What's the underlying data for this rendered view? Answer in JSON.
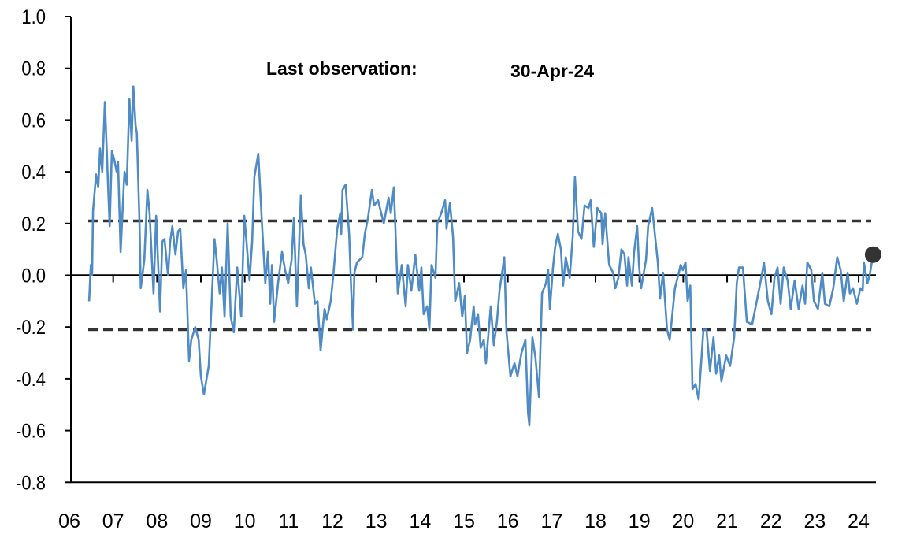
{
  "chart_data": {
    "type": "line",
    "title": "",
    "xlabel": "",
    "ylabel": "",
    "annotation": {
      "label": "Last observation:",
      "value": "30-Apr-24"
    },
    "xlim": [
      2006,
      2024.4
    ],
    "ylim": [
      -0.8,
      1.0
    ],
    "x_ticks": [
      {
        "x": 2006,
        "label": "06"
      },
      {
        "x": 2007,
        "label": "07"
      },
      {
        "x": 2008,
        "label": "08"
      },
      {
        "x": 2009,
        "label": "09"
      },
      {
        "x": 2010,
        "label": "10"
      },
      {
        "x": 2011,
        "label": "11"
      },
      {
        "x": 2012,
        "label": "12"
      },
      {
        "x": 2013,
        "label": "13"
      },
      {
        "x": 2014,
        "label": "14"
      },
      {
        "x": 2015,
        "label": "15"
      },
      {
        "x": 2016,
        "label": "16"
      },
      {
        "x": 2017,
        "label": "17"
      },
      {
        "x": 2018,
        "label": "18"
      },
      {
        "x": 2019,
        "label": "19"
      },
      {
        "x": 2020,
        "label": "20"
      },
      {
        "x": 2021,
        "label": "21"
      },
      {
        "x": 2022,
        "label": "22"
      },
      {
        "x": 2023,
        "label": "23"
      },
      {
        "x": 2024,
        "label": "24"
      }
    ],
    "y_ticks": [
      {
        "y": 1.0,
        "label": "1.0"
      },
      {
        "y": 0.8,
        "label": "0.8"
      },
      {
        "y": 0.6,
        "label": "0.6"
      },
      {
        "y": 0.4,
        "label": "0.4"
      },
      {
        "y": 0.2,
        "label": "0.2"
      },
      {
        "y": 0.0,
        "label": "0.0"
      },
      {
        "y": -0.2,
        "label": "-0.2"
      },
      {
        "y": -0.4,
        "label": "-0.4"
      },
      {
        "y": -0.6,
        "label": "-0.6"
      },
      {
        "y": -0.8,
        "label": "-0.8"
      }
    ],
    "reference_lines": [
      0.21,
      -0.21
    ],
    "grid": false,
    "colors": {
      "series": "#4f8bc4",
      "reference": "#333333",
      "last_point": "#333333",
      "axis": "#000000"
    },
    "last_point": {
      "x": 2024.33,
      "y": 0.08
    },
    "series": [
      {
        "points": [
          [
            2006.45,
            -0.1
          ],
          [
            2006.49,
            0.04
          ],
          [
            2006.52,
            0.0
          ],
          [
            2006.54,
            0.25
          ],
          [
            2006.61,
            0.39
          ],
          [
            2006.66,
            0.34
          ],
          [
            2006.7,
            0.49
          ],
          [
            2006.75,
            0.4
          ],
          [
            2006.81,
            0.67
          ],
          [
            2006.84,
            0.54
          ],
          [
            2006.88,
            0.36
          ],
          [
            2006.92,
            0.19
          ],
          [
            2006.97,
            0.48
          ],
          [
            2007.02,
            0.45
          ],
          [
            2007.08,
            0.4
          ],
          [
            2007.11,
            0.44
          ],
          [
            2007.17,
            0.09
          ],
          [
            2007.24,
            0.34
          ],
          [
            2007.26,
            0.4
          ],
          [
            2007.31,
            0.35
          ],
          [
            2007.37,
            0.68
          ],
          [
            2007.42,
            0.52
          ],
          [
            2007.46,
            0.73
          ],
          [
            2007.51,
            0.58
          ],
          [
            2007.54,
            0.55
          ],
          [
            2007.6,
            0.2
          ],
          [
            2007.63,
            -0.05
          ],
          [
            2007.71,
            0.06
          ],
          [
            2007.78,
            0.33
          ],
          [
            2007.83,
            0.24
          ],
          [
            2007.92,
            -0.07
          ],
          [
            2007.98,
            0.23
          ],
          [
            2008.07,
            -0.14
          ],
          [
            2008.12,
            0.13
          ],
          [
            2008.17,
            0.14
          ],
          [
            2008.25,
            0.0
          ],
          [
            2008.3,
            0.13
          ],
          [
            2008.35,
            0.19
          ],
          [
            2008.42,
            0.08
          ],
          [
            2008.48,
            0.17
          ],
          [
            2008.53,
            0.18
          ],
          [
            2008.6,
            -0.05
          ],
          [
            2008.66,
            0.02
          ],
          [
            2008.73,
            -0.33
          ],
          [
            2008.78,
            -0.25
          ],
          [
            2008.87,
            -0.2
          ],
          [
            2008.95,
            -0.25
          ],
          [
            2009.0,
            -0.39
          ],
          [
            2009.07,
            -0.46
          ],
          [
            2009.18,
            -0.35
          ],
          [
            2009.31,
            0.14
          ],
          [
            2009.36,
            0.06
          ],
          [
            2009.43,
            -0.07
          ],
          [
            2009.48,
            0.03
          ],
          [
            2009.54,
            -0.16
          ],
          [
            2009.61,
            0.2
          ],
          [
            2009.68,
            -0.16
          ],
          [
            2009.75,
            -0.22
          ],
          [
            2009.83,
            0.03
          ],
          [
            2009.92,
            -0.16
          ],
          [
            2009.99,
            0.23
          ],
          [
            2010.04,
            0.13
          ],
          [
            2010.11,
            -0.02
          ],
          [
            2010.17,
            0.13
          ],
          [
            2010.22,
            0.38
          ],
          [
            2010.31,
            0.47
          ],
          [
            2010.4,
            0.18
          ],
          [
            2010.47,
            -0.03
          ],
          [
            2010.53,
            0.09
          ],
          [
            2010.58,
            -0.11
          ],
          [
            2010.62,
            0.04
          ],
          [
            2010.67,
            -0.18
          ],
          [
            2010.76,
            -0.03
          ],
          [
            2010.85,
            0.09
          ],
          [
            2010.92,
            0.02
          ],
          [
            2010.99,
            -0.03
          ],
          [
            2011.07,
            0.06
          ],
          [
            2011.12,
            0.22
          ],
          [
            2011.19,
            -0.12
          ],
          [
            2011.28,
            0.31
          ],
          [
            2011.34,
            0.12
          ],
          [
            2011.39,
            0.08
          ],
          [
            2011.46,
            -0.05
          ],
          [
            2011.51,
            0.03
          ],
          [
            2011.6,
            -0.11
          ],
          [
            2011.66,
            -0.1
          ],
          [
            2011.73,
            -0.29
          ],
          [
            2011.82,
            -0.13
          ],
          [
            2011.87,
            -0.17
          ],
          [
            2011.96,
            -0.1
          ],
          [
            2012.02,
            0.0
          ],
          [
            2012.11,
            0.18
          ],
          [
            2012.18,
            0.24
          ],
          [
            2012.2,
            0.16
          ],
          [
            2012.23,
            0.33
          ],
          [
            2012.3,
            0.35
          ],
          [
            2012.38,
            0.16
          ],
          [
            2012.43,
            -0.07
          ],
          [
            2012.47,
            -0.21
          ],
          [
            2012.5,
            0.01
          ],
          [
            2012.56,
            0.05
          ],
          [
            2012.68,
            0.07
          ],
          [
            2012.74,
            0.16
          ],
          [
            2012.81,
            0.22
          ],
          [
            2012.9,
            0.33
          ],
          [
            2012.95,
            0.27
          ],
          [
            2013.04,
            0.29
          ],
          [
            2013.17,
            0.2
          ],
          [
            2013.28,
            0.3
          ],
          [
            2013.33,
            0.24
          ],
          [
            2013.4,
            0.34
          ],
          [
            2013.49,
            -0.07
          ],
          [
            2013.58,
            0.04
          ],
          [
            2013.67,
            -0.12
          ],
          [
            2013.72,
            0.04
          ],
          [
            2013.8,
            -0.06
          ],
          [
            2013.89,
            0.08
          ],
          [
            2013.98,
            -0.06
          ],
          [
            2014.03,
            0.03
          ],
          [
            2014.08,
            -0.15
          ],
          [
            2014.16,
            -0.12
          ],
          [
            2014.21,
            -0.21
          ],
          [
            2014.26,
            0.04
          ],
          [
            2014.35,
            -0.01
          ],
          [
            2014.39,
            0.2
          ],
          [
            2014.48,
            0.24
          ],
          [
            2014.57,
            0.29
          ],
          [
            2014.6,
            0.18
          ],
          [
            2014.68,
            0.28
          ],
          [
            2014.75,
            0.15
          ],
          [
            2014.8,
            -0.1
          ],
          [
            2014.89,
            -0.03
          ],
          [
            2014.96,
            -0.16
          ],
          [
            2015.02,
            -0.08
          ],
          [
            2015.07,
            -0.3
          ],
          [
            2015.14,
            -0.25
          ],
          [
            2015.22,
            -0.12
          ],
          [
            2015.25,
            -0.19
          ],
          [
            2015.32,
            -0.15
          ],
          [
            2015.38,
            -0.28
          ],
          [
            2015.45,
            -0.25
          ],
          [
            2015.5,
            -0.34
          ],
          [
            2015.61,
            -0.12
          ],
          [
            2015.68,
            -0.27
          ],
          [
            2015.75,
            -0.18
          ],
          [
            2015.81,
            -0.06
          ],
          [
            2015.92,
            0.07
          ],
          [
            2015.97,
            -0.22
          ],
          [
            2016.06,
            -0.39
          ],
          [
            2016.15,
            -0.34
          ],
          [
            2016.22,
            -0.39
          ],
          [
            2016.31,
            -0.3
          ],
          [
            2016.4,
            -0.25
          ],
          [
            2016.46,
            -0.53
          ],
          [
            2016.49,
            -0.58
          ],
          [
            2016.56,
            -0.24
          ],
          [
            2016.63,
            -0.32
          ],
          [
            2016.71,
            -0.47
          ],
          [
            2016.78,
            -0.07
          ],
          [
            2016.87,
            -0.03
          ],
          [
            2016.92,
            0.02
          ],
          [
            2016.96,
            -0.13
          ],
          [
            2017.03,
            0.03
          ],
          [
            2017.08,
            0.11
          ],
          [
            2017.14,
            0.16
          ],
          [
            2017.21,
            0.1
          ],
          [
            2017.26,
            -0.04
          ],
          [
            2017.32,
            0.07
          ],
          [
            2017.41,
            -0.01
          ],
          [
            2017.48,
            0.15
          ],
          [
            2017.53,
            0.38
          ],
          [
            2017.6,
            0.17
          ],
          [
            2017.68,
            0.14
          ],
          [
            2017.75,
            0.27
          ],
          [
            2017.84,
            0.26
          ],
          [
            2017.89,
            0.29
          ],
          [
            2017.96,
            0.11
          ],
          [
            2018.04,
            0.26
          ],
          [
            2018.13,
            0.24
          ],
          [
            2018.16,
            0.12
          ],
          [
            2018.22,
            0.24
          ],
          [
            2018.31,
            0.04
          ],
          [
            2018.4,
            0.01
          ],
          [
            2018.45,
            -0.05
          ],
          [
            2018.52,
            -0.01
          ],
          [
            2018.59,
            0.1
          ],
          [
            2018.66,
            0.08
          ],
          [
            2018.72,
            -0.04
          ],
          [
            2018.75,
            0.07
          ],
          [
            2018.83,
            -0.04
          ],
          [
            2018.88,
            0.09
          ],
          [
            2018.95,
            0.19
          ],
          [
            2018.99,
            0.04
          ],
          [
            2019.04,
            -0.05
          ],
          [
            2019.15,
            0.06
          ],
          [
            2019.2,
            0.19
          ],
          [
            2019.29,
            0.26
          ],
          [
            2019.37,
            0.13
          ],
          [
            2019.42,
            0.05
          ],
          [
            2019.47,
            -0.09
          ],
          [
            2019.54,
            0.01
          ],
          [
            2019.63,
            -0.21
          ],
          [
            2019.69,
            -0.25
          ],
          [
            2019.74,
            -0.17
          ],
          [
            2019.81,
            -0.05
          ],
          [
            2019.9,
            0.01
          ],
          [
            2019.94,
            0.04
          ],
          [
            2019.99,
            0.02
          ],
          [
            2020.05,
            0.05
          ],
          [
            2020.1,
            -0.1
          ],
          [
            2020.16,
            -0.04
          ],
          [
            2020.21,
            -0.44
          ],
          [
            2020.28,
            -0.42
          ],
          [
            2020.35,
            -0.48
          ],
          [
            2020.46,
            -0.21
          ],
          [
            2020.53,
            -0.21
          ],
          [
            2020.61,
            -0.37
          ],
          [
            2020.69,
            -0.24
          ],
          [
            2020.75,
            -0.38
          ],
          [
            2020.82,
            -0.31
          ],
          [
            2020.87,
            -0.41
          ],
          [
            2020.98,
            -0.31
          ],
          [
            2021.07,
            -0.35
          ],
          [
            2021.16,
            -0.24
          ],
          [
            2021.22,
            -0.03
          ],
          [
            2021.27,
            0.03
          ],
          [
            2021.36,
            0.03
          ],
          [
            2021.45,
            -0.18
          ],
          [
            2021.57,
            -0.19
          ],
          [
            2021.7,
            -0.08
          ],
          [
            2021.79,
            0.0
          ],
          [
            2021.84,
            0.05
          ],
          [
            2021.93,
            -0.1
          ],
          [
            2022.01,
            -0.15
          ],
          [
            2022.08,
            -0.01
          ],
          [
            2022.15,
            0.03
          ],
          [
            2022.22,
            -0.11
          ],
          [
            2022.29,
            0.03
          ],
          [
            2022.38,
            -0.02
          ],
          [
            2022.45,
            -0.13
          ],
          [
            2022.54,
            -0.02
          ],
          [
            2022.63,
            -0.13
          ],
          [
            2022.72,
            -0.04
          ],
          [
            2022.78,
            -0.11
          ],
          [
            2022.83,
            0.05
          ],
          [
            2022.92,
            0.02
          ],
          [
            2022.98,
            -0.1
          ],
          [
            2023.07,
            -0.13
          ],
          [
            2023.17,
            0.01
          ],
          [
            2023.23,
            -0.11
          ],
          [
            2023.33,
            -0.12
          ],
          [
            2023.42,
            -0.05
          ],
          [
            2023.51,
            0.07
          ],
          [
            2023.59,
            0.02
          ],
          [
            2023.66,
            -0.1
          ],
          [
            2023.75,
            0.01
          ],
          [
            2023.8,
            -0.07
          ],
          [
            2023.87,
            -0.05
          ],
          [
            2023.96,
            -0.11
          ],
          [
            2024.04,
            -0.05
          ],
          [
            2024.09,
            -0.06
          ],
          [
            2024.12,
            0.05
          ],
          [
            2024.2,
            -0.03
          ],
          [
            2024.25,
            0.0
          ],
          [
            2024.33,
            0.08
          ]
        ]
      }
    ]
  }
}
